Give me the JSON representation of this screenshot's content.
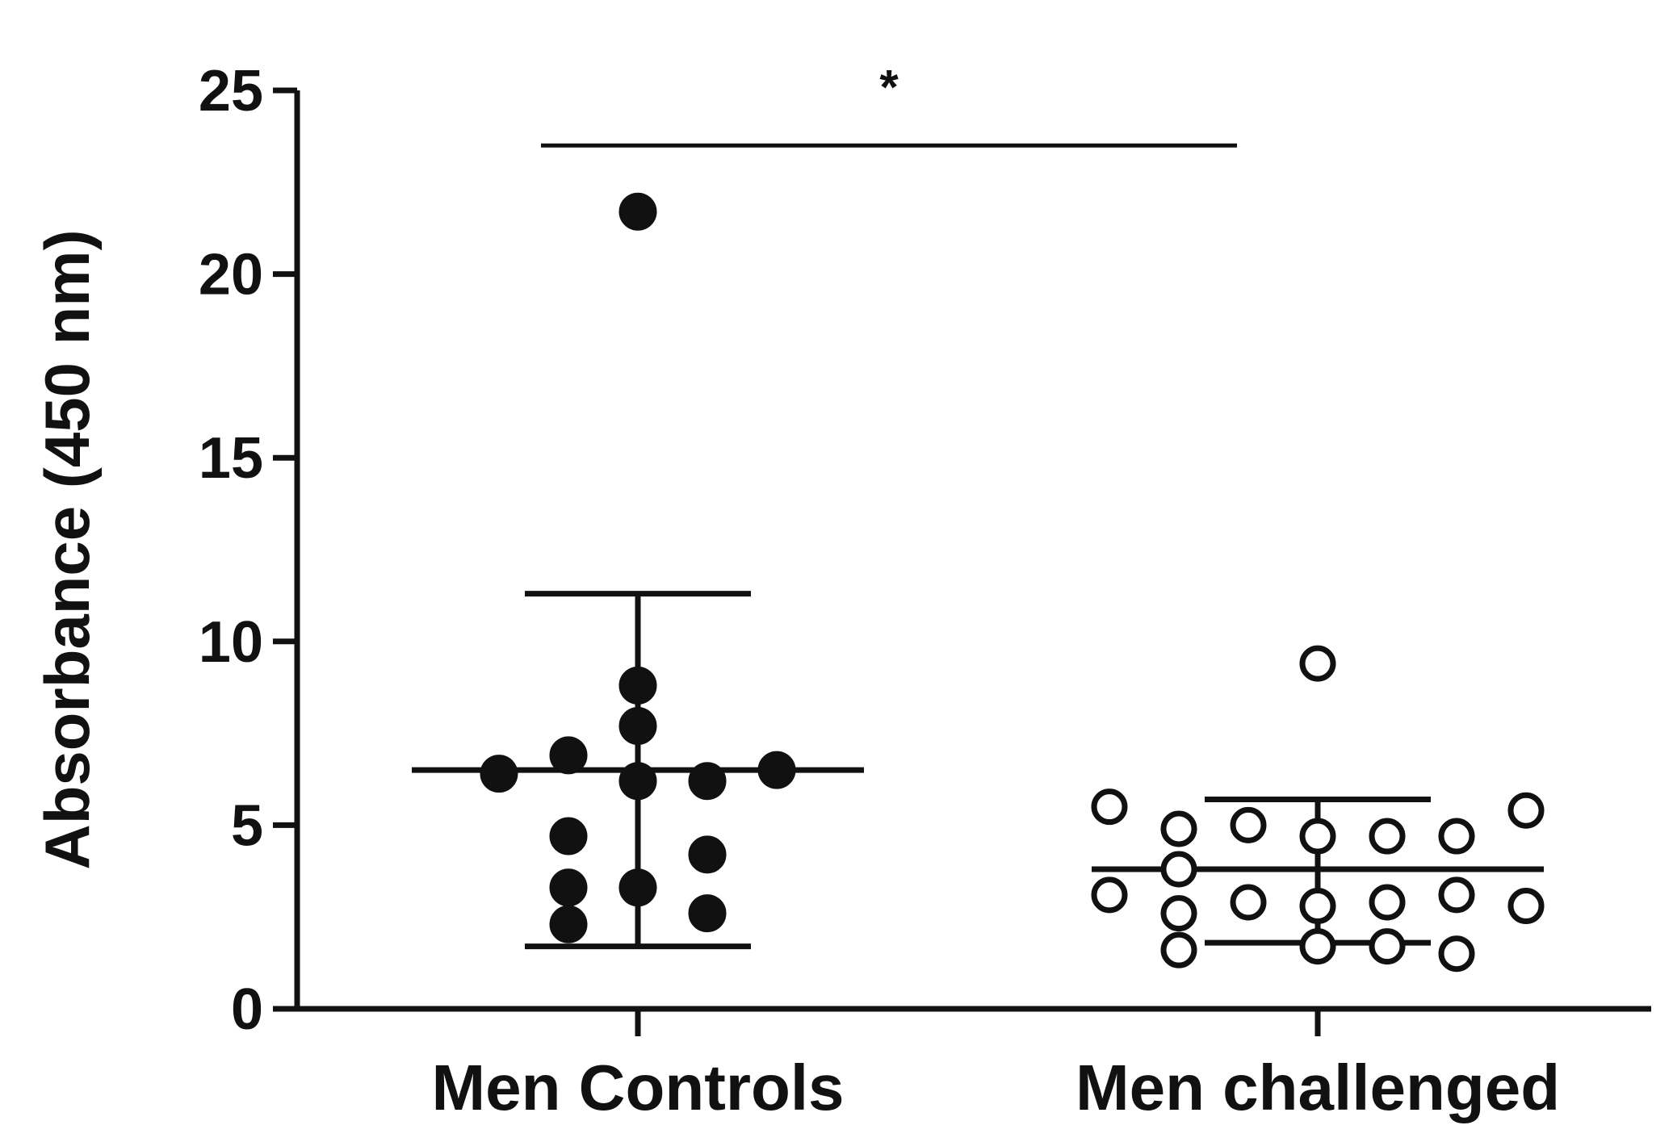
{
  "chart_data": {
    "type": "scatter",
    "title": "",
    "xlabel": "",
    "ylabel": "Absorbance (450 nm)",
    "ylim": [
      0,
      25
    ],
    "yticks": [
      0,
      5,
      10,
      15,
      20,
      25
    ],
    "grid": false,
    "legend": "none",
    "categories": [
      "Men Controls",
      "Men challenged"
    ],
    "series": [
      {
        "category": "Men Controls",
        "marker": "filled",
        "mean": 6.5,
        "sd_low": 1.7,
        "sd_high": 11.3,
        "points": [
          {
            "x": 0.5,
            "y": 21.7
          },
          {
            "x": 0.5,
            "y": 8.8
          },
          {
            "x": 0.5,
            "y": 7.7
          },
          {
            "x": 0.5,
            "y": 6.2
          },
          {
            "x": 0.5,
            "y": 3.3
          },
          {
            "x": 0.4,
            "y": 6.9
          },
          {
            "x": 0.4,
            "y": 4.7
          },
          {
            "x": 0.4,
            "y": 3.3
          },
          {
            "x": 0.4,
            "y": 2.3
          },
          {
            "x": 0.6,
            "y": 6.2
          },
          {
            "x": 0.6,
            "y": 4.2
          },
          {
            "x": 0.6,
            "y": 2.6
          },
          {
            "x": 0.3,
            "y": 6.4
          },
          {
            "x": 0.7,
            "y": 6.5
          }
        ]
      },
      {
        "category": "Men challenged",
        "marker": "open",
        "mean": 3.8,
        "sd_low": 1.8,
        "sd_high": 5.7,
        "points": [
          {
            "x": 0.5,
            "y": 9.4
          },
          {
            "x": 0.5,
            "y": 4.7
          },
          {
            "x": 0.5,
            "y": 2.8
          },
          {
            "x": 0.5,
            "y": 1.7
          },
          {
            "x": 0.2,
            "y": 5.5
          },
          {
            "x": 0.2,
            "y": 3.1
          },
          {
            "x": 0.3,
            "y": 4.9
          },
          {
            "x": 0.3,
            "y": 3.8
          },
          {
            "x": 0.3,
            "y": 2.6
          },
          {
            "x": 0.3,
            "y": 1.6
          },
          {
            "x": 0.4,
            "y": 5.0
          },
          {
            "x": 0.4,
            "y": 2.9
          },
          {
            "x": 0.6,
            "y": 4.7
          },
          {
            "x": 0.6,
            "y": 2.9
          },
          {
            "x": 0.6,
            "y": 1.7
          },
          {
            "x": 0.7,
            "y": 4.7
          },
          {
            "x": 0.7,
            "y": 3.1
          },
          {
            "x": 0.7,
            "y": 1.5
          },
          {
            "x": 0.8,
            "y": 5.4
          },
          {
            "x": 0.8,
            "y": 2.8
          }
        ]
      }
    ],
    "annotations": [
      {
        "text": "*",
        "from": "Men Controls",
        "to": "Men challenged",
        "bar_y": 23.5
      }
    ]
  }
}
